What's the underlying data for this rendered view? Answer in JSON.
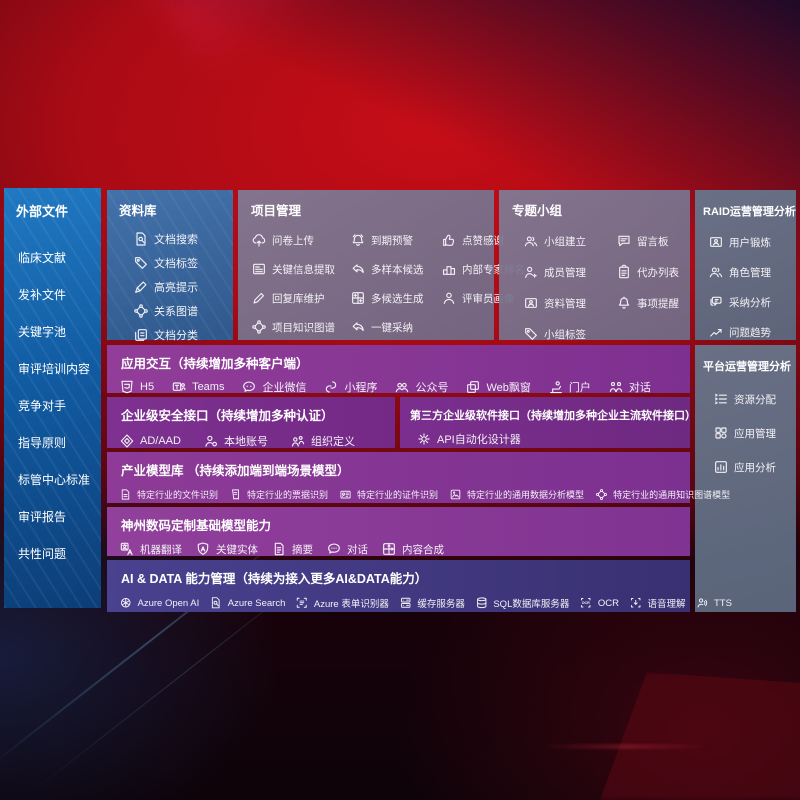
{
  "sidebar": {
    "title": "外部文件",
    "items": [
      "临床文献",
      "发补文件",
      "关键字池",
      "审评培训内容",
      "竞争对手",
      "指导原则",
      "标管中心标准",
      "审评报告",
      "共性问题"
    ]
  },
  "library": {
    "title": "资料库",
    "items": [
      {
        "icon": "doc-search-icon",
        "label": "文档搜索"
      },
      {
        "icon": "tag-icon",
        "label": "文档标签"
      },
      {
        "icon": "highlight-pen-icon",
        "label": "高亮提示"
      },
      {
        "icon": "knowledge-graph-icon",
        "label": "关系图谱"
      },
      {
        "icon": "docs-copy-icon",
        "label": "文档分类"
      }
    ]
  },
  "project": {
    "title": "项目管理",
    "items": [
      {
        "icon": "cloud-upload-icon",
        "label": "问卷上传"
      },
      {
        "icon": "alarm-icon",
        "label": "到期预警"
      },
      {
        "icon": "thumbs-up-icon",
        "label": "点赞感谢"
      },
      {
        "icon": "info-extract-icon",
        "label": "关键信息提取"
      },
      {
        "icon": "reply-arrow-icon",
        "label": "多样本候选"
      },
      {
        "icon": "podium-icon",
        "label": "内部专家排名"
      },
      {
        "icon": "edit-pen-icon",
        "label": "回复库维护"
      },
      {
        "icon": "grid-gen-icon",
        "label": "多候选生成"
      },
      {
        "icon": "person-icon",
        "label": "评审员画像"
      },
      {
        "icon": "knowledge-graph-icon",
        "label": "项目知识图谱"
      },
      {
        "icon": "adopt-arrow-icon",
        "label": "一键采纳"
      }
    ]
  },
  "groups": {
    "title": "专题小组",
    "items": [
      {
        "icon": "people-icon",
        "label": "小组建立"
      },
      {
        "icon": "bbs-board-icon",
        "label": "留言板"
      },
      {
        "icon": "person-add-icon",
        "label": "成员管理"
      },
      {
        "icon": "todo-list-icon",
        "label": "代办列表"
      },
      {
        "icon": "id-card-icon",
        "label": "资料管理"
      },
      {
        "icon": "bell-icon",
        "label": "事项提醒"
      },
      {
        "icon": "tag-icon",
        "label": "小组标签"
      }
    ]
  },
  "raid": {
    "title": "RAID运营管理分析",
    "items": [
      {
        "icon": "id-card-icon",
        "label": "用户锻炼"
      },
      {
        "icon": "people-icon",
        "label": "角色管理"
      },
      {
        "icon": "qa-chat-icon",
        "label": "采纳分析"
      },
      {
        "icon": "trend-icon",
        "label": "问题趋势"
      }
    ]
  },
  "platform": {
    "title": "平台运营管理分析",
    "items": [
      {
        "icon": "list-check-icon",
        "label": "资源分配"
      },
      {
        "icon": "app-grid-icon",
        "label": "应用管理"
      },
      {
        "icon": "chart-card-icon",
        "label": "应用分析"
      }
    ]
  },
  "interaction": {
    "title": "应用交互（持续增加多种客户端）",
    "items": [
      {
        "icon": "html5-icon",
        "label": "H5"
      },
      {
        "icon": "teams-icon",
        "label": "Teams"
      },
      {
        "icon": "wechat-work-icon",
        "label": "企业微信"
      },
      {
        "icon": "miniprogram-icon",
        "label": "小程序"
      },
      {
        "icon": "public-account-icon",
        "label": "公众号"
      },
      {
        "icon": "web-window-icon",
        "label": "Web飘窗"
      },
      {
        "icon": "portal-icon",
        "label": "门户"
      },
      {
        "icon": "dialog-icon",
        "label": "对话"
      }
    ]
  },
  "security": {
    "title": "企业级安全接口（持续增加多种认证）",
    "items": [
      {
        "icon": "ad-shield-icon",
        "label": "AD/AAD"
      },
      {
        "icon": "local-account-icon",
        "label": "本地账号"
      },
      {
        "icon": "org-define-icon",
        "label": "组织定义"
      }
    ]
  },
  "thirdparty": {
    "title": "第三方企业级软件接口（持续增加多种企业主流软件接口）",
    "items": [
      {
        "icon": "api-gear-icon",
        "label": "API自动化设计器"
      }
    ]
  },
  "industry": {
    "title": "产业模型库 （持续添加端到端场景模型）",
    "items": [
      {
        "icon": "file-recognize-icon",
        "label": "特定行业的文件识别"
      },
      {
        "icon": "receipt-icon",
        "label": "特定行业的票据识别"
      },
      {
        "icon": "cert-card-icon",
        "label": "特定行业的证件识别"
      },
      {
        "icon": "data-model-icon",
        "label": "特定行业的通用数据分析模型"
      },
      {
        "icon": "knowledge-graph-icon",
        "label": "特定行业的通用知识图谱模型"
      }
    ]
  },
  "base_model": {
    "title": "神州数码定制基础模型能力",
    "items": [
      {
        "icon": "translate-icon",
        "label": "机器翻译"
      },
      {
        "icon": "entity-shield-icon",
        "label": "关键实体"
      },
      {
        "icon": "summary-doc-icon",
        "label": "摘要"
      },
      {
        "icon": "chat-icon",
        "label": "对话"
      },
      {
        "icon": "compose-grid-icon",
        "label": "内容合成"
      }
    ]
  },
  "aidata": {
    "title": "AI & DATA 能力管理（持续为接入更多AI&DATA能力）",
    "items": [
      {
        "icon": "openai-icon",
        "label": "Azure Open AI"
      },
      {
        "icon": "doc-search-icon",
        "label": "Azure Search"
      },
      {
        "icon": "form-recognizer-icon",
        "label": "Azure 表单识别器"
      },
      {
        "icon": "cache-server-icon",
        "label": "缓存服务器"
      },
      {
        "icon": "sql-db-icon",
        "label": "SQL数据库服务器"
      },
      {
        "icon": "ocr-icon",
        "label": "OCR"
      },
      {
        "icon": "speech-icon",
        "label": "语音理解"
      },
      {
        "icon": "tts-icon",
        "label": "TTS"
      }
    ]
  },
  "colors": {
    "background_red": "#c60d17",
    "sidebar_blue": "#115ba2",
    "library_blue": "#3a6ea8",
    "panel_grey": "#7b7490",
    "panel_slate": "#61708a",
    "row_purple": "#8a3a94",
    "row_indigo": "#443b85"
  }
}
